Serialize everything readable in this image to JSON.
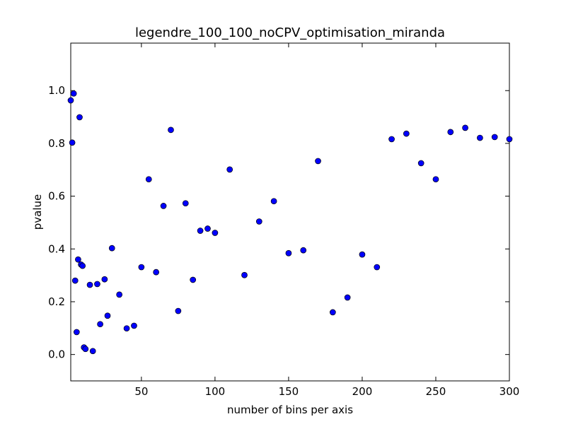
{
  "chart_data": {
    "type": "scatter",
    "title": "legendre_100_100_noCPV_optimisation_miranda",
    "x_label": "number of bins per axis",
    "y_label": "pvalue",
    "color": "#0000ff",
    "x": [
      2,
      3,
      4,
      5,
      6,
      7,
      8,
      9,
      10,
      11,
      12,
      15,
      17,
      20,
      22,
      25,
      27,
      30,
      35,
      40,
      45,
      50,
      55,
      60,
      65,
      70,
      75,
      80,
      85,
      90,
      95,
      100,
      110,
      120,
      130,
      140,
      150,
      160,
      170,
      180,
      190,
      200,
      210,
      220,
      230,
      240,
      250,
      260,
      270,
      280,
      290,
      300
    ],
    "values": [
      0.963,
      0.803,
      0.989,
      0.28,
      0.085,
      0.36,
      0.899,
      0.341,
      0.336,
      0.027,
      0.021,
      0.264,
      0.013,
      0.267,
      0.115,
      0.285,
      0.147,
      0.403,
      0.227,
      0.099,
      0.109,
      0.331,
      0.664,
      0.312,
      0.563,
      0.851,
      0.165,
      0.573,
      0.283,
      0.469,
      0.477,
      0.461,
      0.701,
      0.301,
      0.504,
      0.581,
      0.384,
      0.395,
      0.733,
      0.16,
      0.216,
      0.379,
      0.331,
      0.816,
      0.837,
      0.725,
      0.664,
      0.843,
      0.859,
      0.821,
      0.824,
      0.816
    ],
    "xlim": [
      2,
      300
    ],
    "ylim": [
      -0.1,
      1.18
    ],
    "xticks": [
      50,
      100,
      150,
      200,
      250,
      300
    ],
    "yticks": [
      {
        "value": 0,
        "label": "0.0"
      },
      0.2,
      0.4,
      0.6,
      0.8,
      {
        "value": 1,
        "label": "1.0"
      }
    ]
  }
}
